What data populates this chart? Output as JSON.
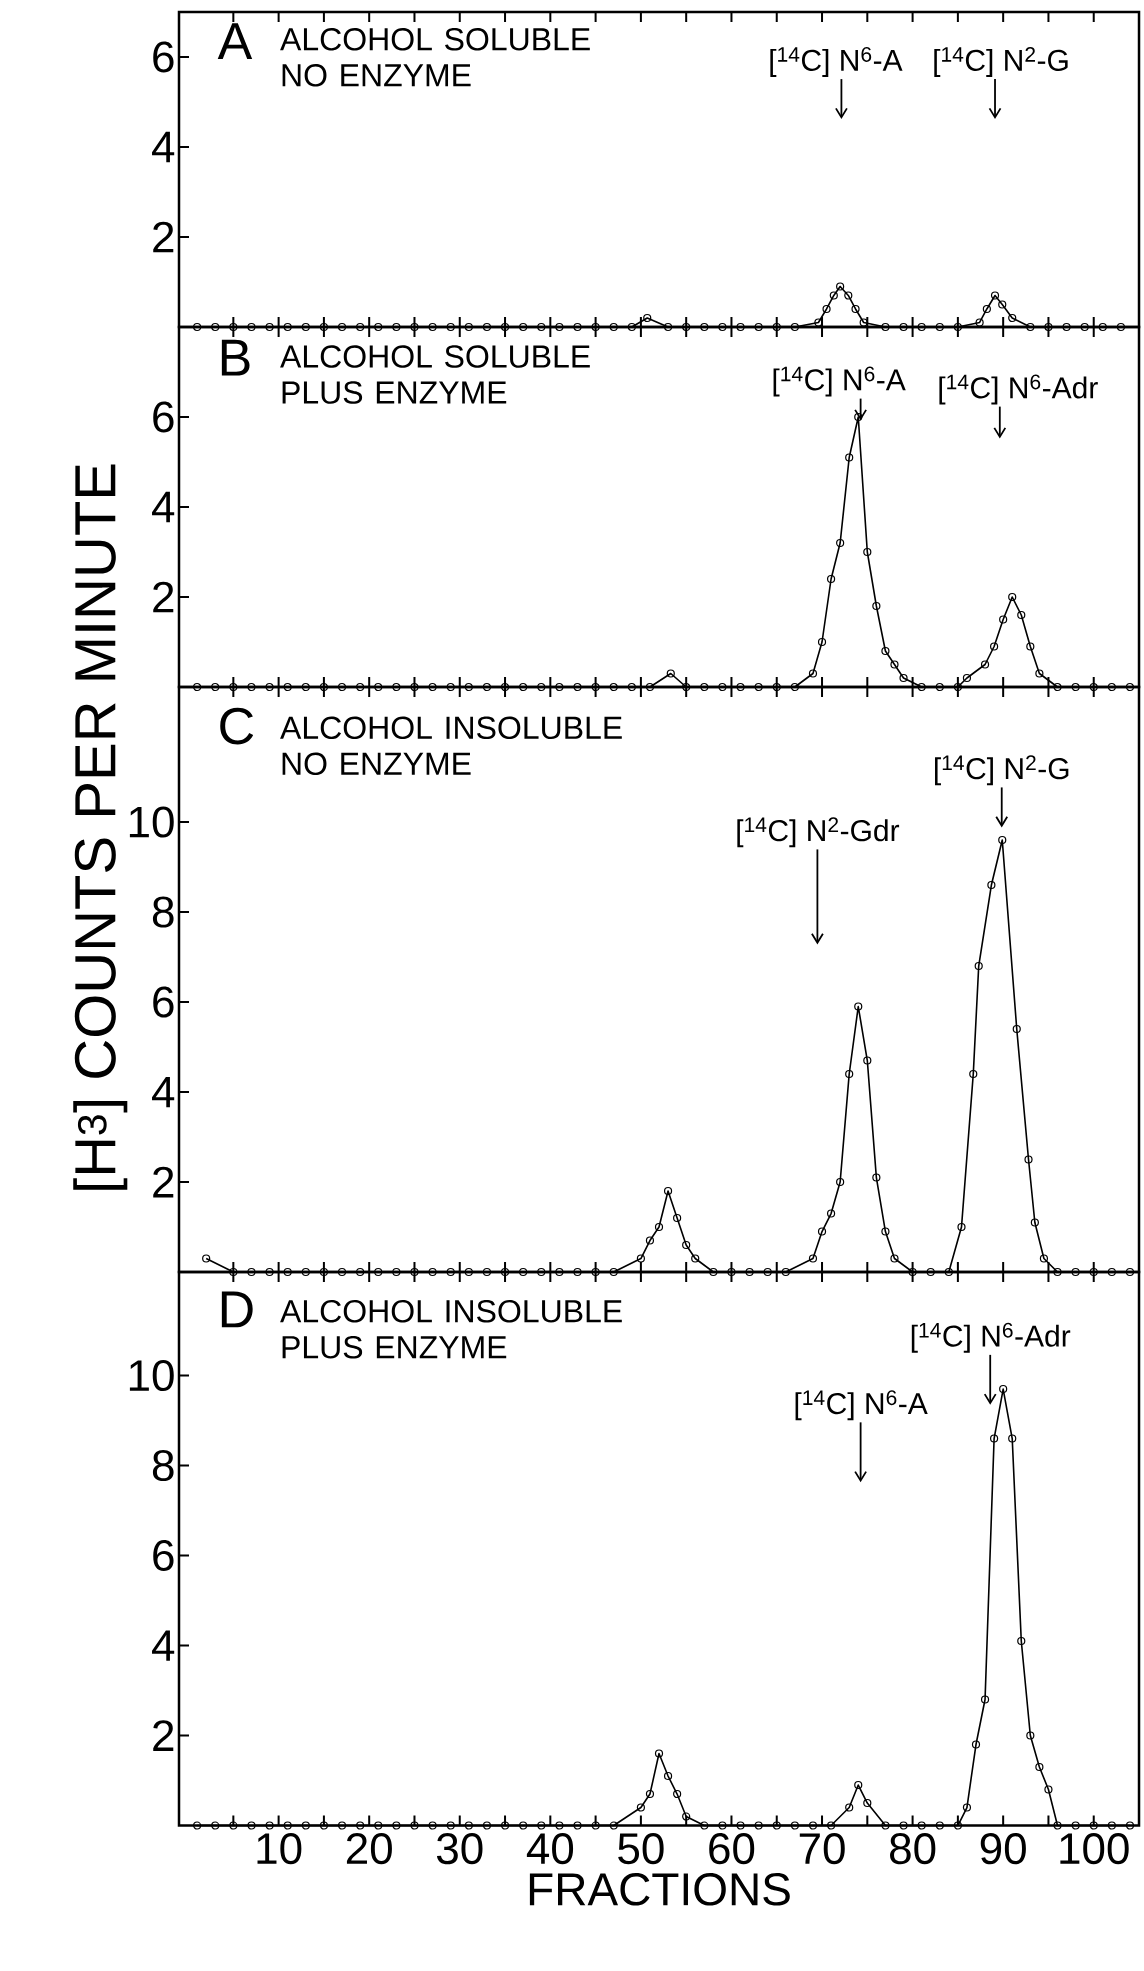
{
  "chart_data": [
    {
      "type": "line",
      "title": "A",
      "subtitle": "ALCOHOL SOLUBLE NO ENZYME",
      "marker": "circle",
      "line_style": "solid",
      "tick_labels": "y",
      "xlim": [
        -1,
        105
      ],
      "ylim": [
        0,
        7
      ],
      "yticks": [
        2,
        4,
        6
      ],
      "xticks": [
        {
          "value": 5,
          "label": null
        },
        10,
        {
          "value": 15,
          "label": null
        },
        20,
        {
          "value": 25,
          "label": null
        },
        30,
        {
          "value": 35,
          "label": null
        },
        40,
        {
          "value": 45,
          "label": null
        },
        50,
        {
          "value": 55,
          "label": null
        },
        60,
        {
          "value": 65,
          "label": null
        },
        70,
        {
          "value": 75,
          "label": null
        },
        80,
        {
          "value": 85,
          "label": null
        },
        90,
        {
          "value": 95,
          "label": null
        },
        100
      ],
      "series": [
        {
          "color": "#000000",
          "x": [
            1,
            3,
            5,
            7,
            9,
            11,
            13,
            15,
            17,
            19,
            21,
            23,
            25,
            27,
            29,
            31,
            33,
            35,
            37,
            39,
            41,
            43,
            45,
            47,
            49,
            50.7,
            53,
            55,
            57,
            59,
            61,
            63,
            65,
            67,
            69.6,
            70.5,
            71.3,
            72.0,
            72.9,
            73.7,
            74.6,
            77,
            79,
            81,
            83,
            85,
            87.4,
            88.2,
            89.1,
            89.9,
            91.0,
            93,
            95,
            97,
            99,
            101,
            103
          ],
          "values": [
            0,
            0,
            0,
            0,
            0,
            0,
            0,
            0,
            0,
            0,
            0,
            0,
            0,
            0,
            0,
            0,
            0,
            0,
            0,
            0,
            0,
            0,
            0,
            0,
            0,
            0.2,
            0,
            0,
            0,
            0,
            0,
            0,
            0,
            0,
            0.1,
            0.4,
            0.7,
            0.9,
            0.7,
            0.4,
            0.1,
            0,
            0,
            0,
            0,
            0,
            0.1,
            0.4,
            0.7,
            0.5,
            0.2,
            0,
            0,
            0,
            0,
            0,
            0
          ]
        }
      ],
      "annotations": [
        "[$^{14}$C] N$^{6}$-A",
        "[$^{14}$C] N$^{2}$-G"
      ]
    },
    {
      "type": "line",
      "title": "B",
      "subtitle": "ALCOHOL SOLUBLE PLUS ENZYME",
      "marker": "circle",
      "line_style": "solid",
      "tick_labels": "y",
      "xlim": [
        -1,
        105
      ],
      "ylim": [
        0,
        8
      ],
      "yticks": [
        2,
        4,
        6
      ],
      "xticks": [
        {
          "value": 5,
          "label": null
        },
        10,
        {
          "value": 15,
          "label": null
        },
        20,
        {
          "value": 25,
          "label": null
        },
        30,
        {
          "value": 35,
          "label": null
        },
        40,
        {
          "value": 45,
          "label": null
        },
        50,
        {
          "value": 55,
          "label": null
        },
        60,
        {
          "value": 65,
          "label": null
        },
        70,
        {
          "value": 75,
          "label": null
        },
        80,
        {
          "value": 85,
          "label": null
        },
        90,
        {
          "value": 95,
          "label": null
        },
        100
      ],
      "series": [
        {
          "color": "#000000",
          "x": [
            1,
            3,
            5,
            7,
            9,
            11,
            13,
            15,
            17,
            19,
            21,
            23,
            25,
            27,
            29,
            31,
            33,
            35,
            37,
            39,
            41,
            43,
            45,
            47,
            49,
            51,
            53.3,
            55,
            57,
            59,
            61,
            63,
            65,
            67,
            69,
            70,
            71,
            72,
            73,
            74,
            75,
            76,
            77,
            78,
            79,
            81,
            83,
            85,
            86,
            88,
            89,
            90,
            91,
            92,
            93,
            94,
            96,
            98,
            100,
            102,
            104
          ],
          "values": [
            0,
            0,
            0,
            0,
            0,
            0,
            0,
            0,
            0,
            0,
            0,
            0,
            0,
            0,
            0,
            0,
            0,
            0,
            0,
            0,
            0,
            0,
            0,
            0,
            0,
            0,
            0.3,
            0,
            0,
            0,
            0,
            0,
            0,
            0,
            0.3,
            1.0,
            2.4,
            3.2,
            5.1,
            6.0,
            3.0,
            1.8,
            0.8,
            0.5,
            0.2,
            0,
            0,
            0,
            0.2,
            0.5,
            0.9,
            1.5,
            2.0,
            1.6,
            0.9,
            0.3,
            0,
            0,
            0,
            0,
            0
          ]
        }
      ],
      "annotations": [
        "[$^{14}$C] N$^{6}$-A",
        "[$^{14}$C] N$^{6}$-Adr"
      ]
    },
    {
      "type": "line",
      "title": "C",
      "subtitle": "ALCOHOL INSOLUBLE NO ENZYME",
      "ylabel": "[H$^{3}$] COUNTS PER MINUTE",
      "marker": "circle",
      "line_style": "solid",
      "tick_labels": "y",
      "xlim": [
        -1,
        105
      ],
      "ylim": [
        0,
        13
      ],
      "yticks": [
        2,
        4,
        6,
        8,
        10
      ],
      "xticks": [
        {
          "value": 5,
          "label": null
        },
        10,
        {
          "value": 15,
          "label": null
        },
        20,
        {
          "value": 25,
          "label": null
        },
        30,
        {
          "value": 35,
          "label": null
        },
        40,
        {
          "value": 45,
          "label": null
        },
        50,
        {
          "value": 55,
          "label": null
        },
        60,
        {
          "value": 65,
          "label": null
        },
        70,
        {
          "value": 75,
          "label": null
        },
        80,
        {
          "value": 85,
          "label": null
        },
        90,
        {
          "value": 95,
          "label": null
        },
        100
      ],
      "series": [
        {
          "color": "#000000",
          "x": [
            2,
            5,
            7,
            9,
            11,
            13,
            15,
            17,
            19,
            21,
            23,
            25,
            27,
            29,
            31,
            33,
            35,
            37,
            39,
            41,
            43,
            45,
            47,
            50,
            51,
            52,
            53,
            54,
            55,
            56,
            58,
            60,
            62,
            64,
            66,
            69,
            70,
            71,
            72,
            73,
            74,
            75,
            76,
            77,
            78,
            80,
            82,
            84,
            85.4,
            86.7,
            87.3,
            88.7,
            89.9,
            91.5,
            92.8,
            93.5,
            94.5,
            96,
            98,
            100,
            102,
            104
          ],
          "values": [
            0.3,
            0,
            0,
            0,
            0,
            0,
            0,
            0,
            0,
            0,
            0,
            0,
            0,
            0,
            0,
            0,
            0,
            0,
            0,
            0,
            0,
            0,
            0,
            0.3,
            0.7,
            1.0,
            1.8,
            1.2,
            0.6,
            0.3,
            0,
            0,
            0,
            0,
            0,
            0.3,
            0.9,
            1.3,
            2.0,
            4.4,
            5.9,
            4.7,
            2.1,
            0.9,
            0.3,
            0,
            0,
            0,
            1.0,
            4.4,
            6.8,
            8.6,
            9.6,
            5.4,
            2.5,
            1.1,
            0.3,
            0,
            0,
            0,
            0,
            0
          ]
        }
      ],
      "annotations": [
        "[$^{14}$C] N$^{2}$-Gdr",
        "[$^{14}$C] N$^{2}$-G"
      ]
    },
    {
      "type": "line",
      "title": "D",
      "subtitle": "ALCOHOL INSOLUBLE PLUS ENZYME",
      "xlabel": "FRACTIONS",
      "marker": "circle",
      "line_style": "solid",
      "xlim": [
        -1,
        105
      ],
      "ylim": [
        0,
        12.3
      ],
      "yticks": [
        2,
        4,
        6,
        8,
        10
      ],
      "xticks": [
        {
          "value": 5,
          "label": null
        },
        10,
        {
          "value": 15,
          "label": null
        },
        20,
        {
          "value": 25,
          "label": null
        },
        30,
        {
          "value": 35,
          "label": null
        },
        40,
        {
          "value": 45,
          "label": null
        },
        50,
        {
          "value": 55,
          "label": null
        },
        60,
        {
          "value": 65,
          "label": null
        },
        70,
        {
          "value": 75,
          "label": null
        },
        80,
        {
          "value": 85,
          "label": null
        },
        90,
        {
          "value": 95,
          "label": null
        },
        100
      ],
      "series": [
        {
          "color": "#000000",
          "x": [
            1,
            3,
            5,
            7,
            9,
            11,
            13,
            15,
            17,
            19,
            21,
            23,
            25,
            27,
            29,
            31,
            33,
            35,
            37,
            39,
            41,
            43,
            45,
            47,
            50,
            51,
            52,
            53,
            54,
            55,
            57,
            59,
            61,
            63,
            65,
            67,
            69,
            71,
            73,
            74,
            75,
            77,
            79,
            81,
            83,
            85,
            86,
            87,
            88,
            89,
            90,
            91,
            92,
            93,
            94,
            95,
            96,
            98,
            100,
            102,
            104
          ],
          "values": [
            0,
            0,
            0,
            0,
            0,
            0,
            0,
            0,
            0,
            0,
            0,
            0,
            0,
            0,
            0,
            0,
            0,
            0,
            0,
            0,
            0,
            0,
            0,
            0,
            0.4,
            0.7,
            1.6,
            1.1,
            0.7,
            0.2,
            0,
            0,
            0,
            0,
            0,
            0,
            0,
            0,
            0.4,
            0.9,
            0.5,
            0,
            0,
            0,
            0,
            0,
            0.4,
            1.8,
            2.8,
            8.6,
            9.7,
            8.6,
            4.1,
            2.0,
            1.3,
            0.8,
            0.0,
            0,
            0,
            0,
            0
          ]
        }
      ],
      "annotations": [
        "[$^{14}$C] N$^{6}$-A",
        "[$^{14}$C] N$^{6}$-Adr"
      ]
    }
  ]
}
